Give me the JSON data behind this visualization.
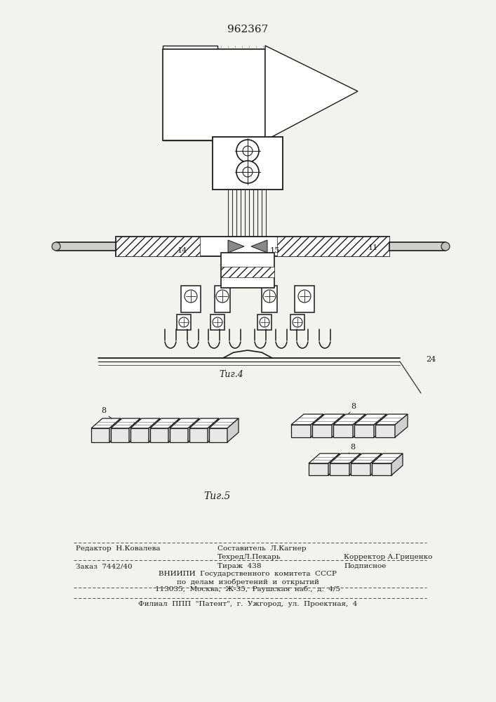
{
  "patent_number": "962367",
  "background_color": "#f2f2ee",
  "line_color": "#1a1a1a",
  "fig4_label": "Τиг.4",
  "fig5_label": "Τиг.5",
  "footer": {
    "editor": "Редактор  Н.Ковалева",
    "compiler": "Составитель  Л.Кагнер",
    "techred": "ТехредЛ.Пекарь",
    "corrector": "Корректор А.Гриценко",
    "order": "Заказ  7442/40",
    "tirazh": "Тираж  438",
    "podpisnoe": "Подписное",
    "vnipi": "ВНИИПИ  Государственного  комитета  СССР",
    "po_delam": "по  делам  изобретений  и  открытий",
    "address": "113035,  Москва,  Ж-35,  Раушская  наб.,  д.  4/5",
    "filial": "Филиал  ППП  \"Патент\",  г.  Ужгород,  ул.  Проектная,  4"
  }
}
